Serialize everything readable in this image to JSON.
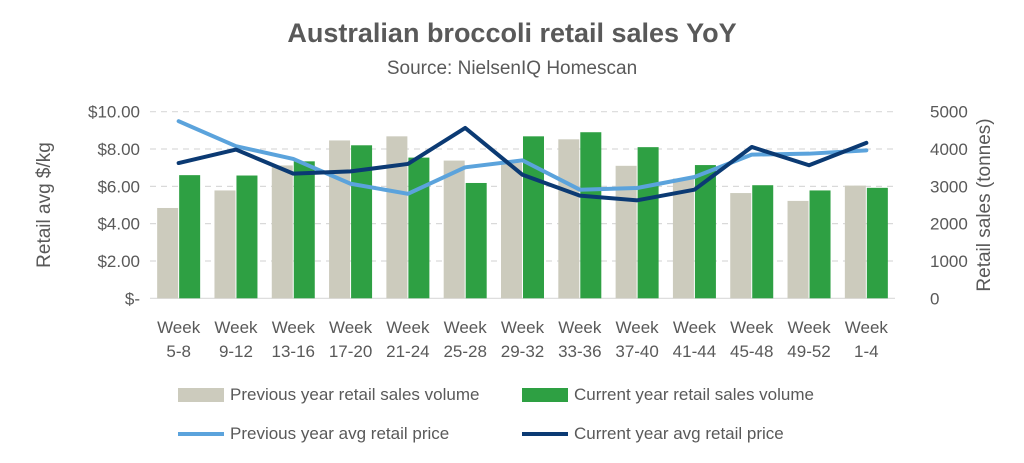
{
  "chart_data": {
    "type": "bar+line",
    "title": "Australian broccoli retail sales YoY",
    "subtitle": "Source: NielsenIQ Homescan",
    "categories": [
      "Week 5-8",
      "Week 9-12",
      "Week 13-16",
      "Week 17-20",
      "Week 21-24",
      "Week 25-28",
      "Week 29-32",
      "Week 33-36",
      "Week 37-40",
      "Week 41-44",
      "Week 45-48",
      "Week 49-52",
      "Week 1-4"
    ],
    "ylabel_left": "Retail avg $/kg",
    "ylabel_right": "Retail sales (tonnes)",
    "ylim_left": [
      0,
      10
    ],
    "ylim_right": [
      0,
      5000
    ],
    "yticks_left": [
      "$-",
      "$2.00",
      "$4.00",
      "$6.00",
      "$8.00",
      "$10.00"
    ],
    "yticks_right": [
      "0",
      "1000",
      "2000",
      "3000",
      "4000",
      "5000"
    ],
    "grid": true,
    "legend_position": "bottom",
    "series": [
      {
        "name": "Previous year retail sales volume",
        "type": "bar",
        "axis": "right",
        "color": "#cccbbd",
        "values": [
          2420,
          2890,
          3560,
          4230,
          4340,
          3690,
          3630,
          4260,
          3550,
          3210,
          2820,
          2610,
          3020
        ]
      },
      {
        "name": "Current year retail sales volume",
        "type": "bar",
        "axis": "right",
        "color": "#2ea043",
        "values": [
          3300,
          3290,
          3670,
          4100,
          3770,
          3090,
          4340,
          4450,
          4050,
          3570,
          3030,
          2890,
          2960
        ]
      },
      {
        "name": "Previous year avg retail price",
        "type": "line",
        "axis": "left",
        "color": "#5ba3dc",
        "values": [
          9.49,
          8.15,
          7.47,
          6.14,
          5.6,
          7.02,
          7.39,
          5.82,
          5.91,
          6.5,
          7.7,
          7.75,
          7.93
        ]
      },
      {
        "name": "Current year avg retail price",
        "type": "line",
        "axis": "left",
        "color": "#0b3a73",
        "values": [
          7.25,
          7.97,
          6.68,
          6.8,
          7.2,
          9.13,
          6.62,
          5.5,
          5.25,
          5.82,
          8.11,
          7.13,
          8.33
        ]
      }
    ]
  }
}
